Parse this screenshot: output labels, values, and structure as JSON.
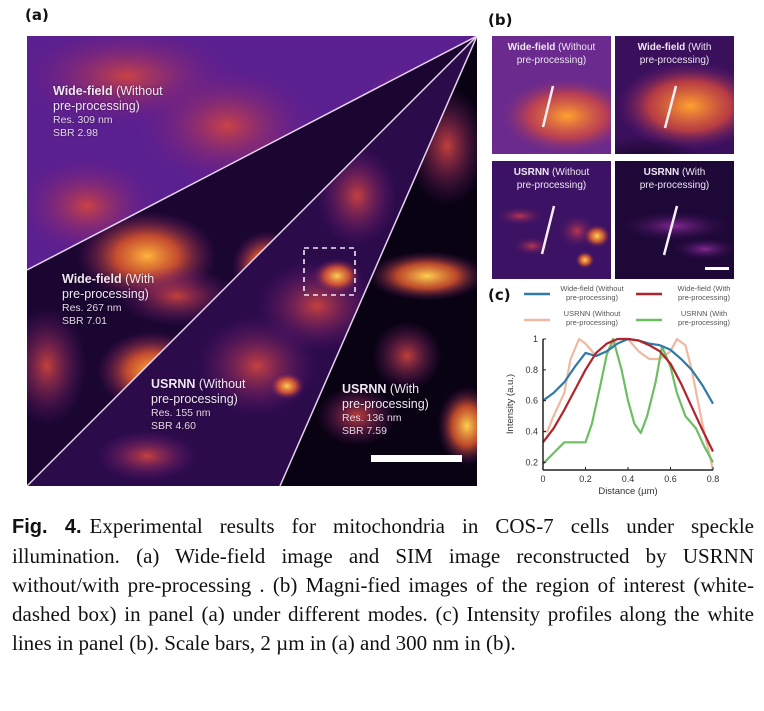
{
  "figure": {
    "panel_labels": {
      "a": "(a)",
      "b": "(b)",
      "c": "(c)"
    },
    "panel_a": {
      "regions": [
        {
          "title_bold": "Wide-field",
          "title_rest": " (Without",
          "title_line2": "pre-processing)",
          "res": "Res. 309 nm",
          "sbr": "SBR 2.98"
        },
        {
          "title_bold": "Wide-field",
          "title_rest": " (With",
          "title_line2": "pre-processing)",
          "res": "Res. 267 nm",
          "sbr": "SBR 7.01"
        },
        {
          "title_bold": "USRNN",
          "title_rest": " (Without",
          "title_line2": "pre-processing)",
          "res": "Res. 155 nm",
          "sbr": "SBR 4.60"
        },
        {
          "title_bold": "USRNN",
          "title_rest": " (With",
          "title_line2": "pre-processing)",
          "res": "Res. 136 nm",
          "sbr": "SBR 7.59"
        }
      ],
      "scale_bar": "2 µm"
    },
    "panel_b": {
      "tiles": [
        {
          "title_bold": "Wide-field",
          "title_rest": " (Without",
          "title_line2": "pre-processing)"
        },
        {
          "title_bold": "Wide-field",
          "title_rest": " (With",
          "title_line2": "pre-processing)"
        },
        {
          "title_bold": "USRNN",
          "title_rest": " (Without",
          "title_line2": "pre-processing)"
        },
        {
          "title_bold": "USRNN",
          "title_rest": " (With",
          "title_line2": "pre-processing)"
        }
      ],
      "scale_bar": "300 nm"
    },
    "caption": {
      "label": "Fig. 4.",
      "text": "Experimental results for mitochondria in COS-7 cells under speckle illumination. (a) Wide-field image and SIM image reconstructed by USRNN without/with pre-processing . (b) Magni-fied images of the region of interest (white-dashed box) in panel (a) under different modes. (c) Intensity profiles along the white lines in panel (b). Scale bars, 2 µm in (a) and 300 nm in (b)."
    }
  },
  "chart_data": {
    "type": "line",
    "title": "",
    "xlabel": "Distance (µm)",
    "ylabel": "Intensity (a.u.)",
    "xlim": [
      0,
      0.8
    ],
    "ylim": [
      0.15,
      1.0
    ],
    "xticks": [
      "0",
      "0.2",
      "0.4",
      "0.6",
      "0.8"
    ],
    "yticks": [
      "0.2",
      "0.4",
      "0.6",
      "0.8",
      "1"
    ],
    "xtick_values": [
      0,
      0.2,
      0.4,
      0.6,
      0.8
    ],
    "ytick_values": [
      0.2,
      0.4,
      0.6,
      0.8,
      1.0
    ],
    "grid": false,
    "legend_position": "top",
    "series": [
      {
        "name": "Wide-field (Without pre-processing)",
        "line1": "Wide-field (Without",
        "line2": "pre-processing)",
        "color": "#2f7aa8",
        "x": [
          0,
          0.05,
          0.1,
          0.15,
          0.2,
          0.25,
          0.3,
          0.35,
          0.4,
          0.45,
          0.5,
          0.55,
          0.6,
          0.65,
          0.7,
          0.75,
          0.8
        ],
        "y": [
          0.6,
          0.65,
          0.72,
          0.82,
          0.91,
          0.89,
          0.92,
          0.97,
          1.0,
          0.99,
          0.97,
          0.96,
          0.93,
          0.87,
          0.8,
          0.7,
          0.58
        ]
      },
      {
        "name": "Wide-field (With pre-processing)",
        "line1": "Wide-field (With",
        "line2": "pre-processing)",
        "color": "#b0232a",
        "x": [
          0,
          0.05,
          0.1,
          0.15,
          0.2,
          0.25,
          0.3,
          0.35,
          0.4,
          0.45,
          0.5,
          0.55,
          0.6,
          0.65,
          0.7,
          0.75,
          0.8
        ],
        "y": [
          0.33,
          0.42,
          0.54,
          0.67,
          0.8,
          0.91,
          0.97,
          1.0,
          1.0,
          0.99,
          0.96,
          0.92,
          0.84,
          0.71,
          0.56,
          0.41,
          0.27
        ]
      },
      {
        "name": "USRNN (Without pre-processing)",
        "line1": "USRNN (Without",
        "line2": "pre-processing)",
        "color": "#f0b8a0",
        "x": [
          0,
          0.02,
          0.05,
          0.1,
          0.13,
          0.17,
          0.2,
          0.25,
          0.3,
          0.35,
          0.4,
          0.45,
          0.5,
          0.55,
          0.6,
          0.63,
          0.67,
          0.7,
          0.75,
          0.8
        ],
        "y": [
          0.4,
          0.4,
          0.5,
          0.65,
          0.87,
          1.0,
          0.97,
          0.89,
          0.92,
          1.0,
          1.0,
          0.92,
          0.87,
          0.87,
          0.92,
          1.0,
          0.96,
          0.8,
          0.45,
          0.15
        ]
      },
      {
        "name": "USRNN (With pre-processing)",
        "line1": "USRNN (With",
        "line2": "pre-processing)",
        "color": "#6dbd62",
        "x": [
          0,
          0.05,
          0.1,
          0.15,
          0.2,
          0.23,
          0.27,
          0.3,
          0.33,
          0.37,
          0.4,
          0.43,
          0.46,
          0.49,
          0.53,
          0.56,
          0.6,
          0.63,
          0.67,
          0.72,
          0.76,
          0.8
        ],
        "y": [
          0.19,
          0.26,
          0.33,
          0.33,
          0.33,
          0.45,
          0.7,
          0.9,
          1.0,
          0.8,
          0.6,
          0.45,
          0.39,
          0.5,
          0.72,
          0.95,
          0.82,
          0.65,
          0.5,
          0.42,
          0.3,
          0.2
        ]
      }
    ]
  }
}
